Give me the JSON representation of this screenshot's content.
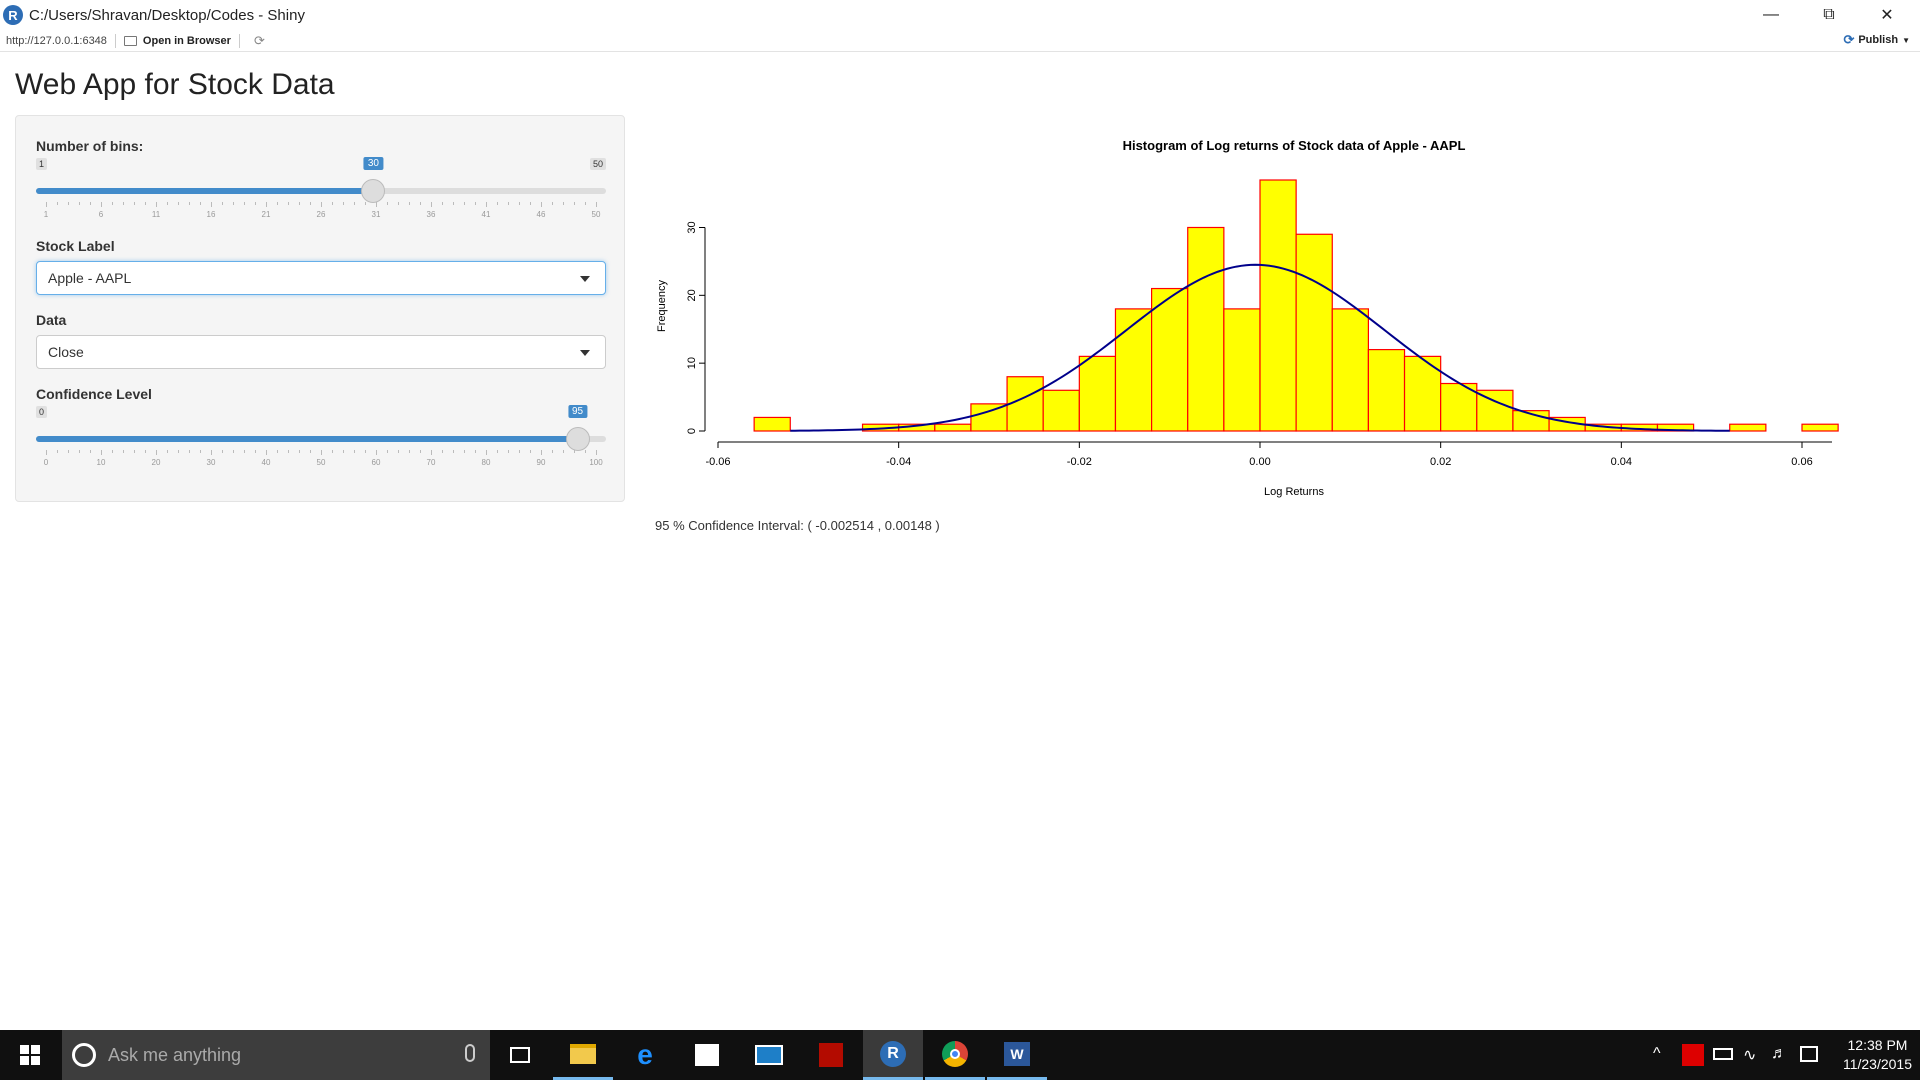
{
  "window": {
    "title": "C:/Users/Shravan/Desktop/Codes - Shiny",
    "url": "http://127.0.0.1:6348",
    "open_in_browser": "Open in Browser",
    "publish": "Publish"
  },
  "app": {
    "title": "Web App for Stock Data",
    "bins": {
      "label": "Number of bins:",
      "min": "1",
      "max": "50",
      "value": "30",
      "fraction": 0.592,
      "ticks": [
        "1",
        "6",
        "11",
        "16",
        "21",
        "26",
        "31",
        "36",
        "41",
        "46",
        "50"
      ]
    },
    "stock": {
      "label": "Stock Label",
      "value": "Apple - AAPL"
    },
    "data": {
      "label": "Data",
      "value": "Close"
    },
    "confidence": {
      "label": "Confidence Level",
      "min": "0",
      "max": "100",
      "value": "95",
      "fraction": 0.95,
      "ticks": [
        "0",
        "10",
        "20",
        "30",
        "40",
        "50",
        "60",
        "70",
        "80",
        "90",
        "100"
      ]
    },
    "ci_text": "95 % Confidence Interval: ( -0.002514 , 0.00148 )"
  },
  "chart_data": {
    "type": "bar",
    "title": "Histogram of Log returns of Stock data of Apple - AAPL",
    "xlabel": "Log Returns",
    "ylabel": "Frequency",
    "xlim": [
      -0.06,
      0.06
    ],
    "ylim": [
      0,
      37
    ],
    "x_ticks": [
      "-0.06",
      "-0.04",
      "-0.02",
      "0.00",
      "0.02",
      "0.04",
      "0.06"
    ],
    "y_ticks": [
      "0",
      "10",
      "20",
      "30"
    ],
    "bin_edges": [
      -0.056,
      -0.052,
      -0.048,
      -0.044,
      -0.04,
      -0.036,
      -0.032,
      -0.028,
      -0.024,
      -0.02,
      -0.016,
      -0.012,
      -0.008,
      -0.004,
      0.0,
      0.004,
      0.008,
      0.012,
      0.016,
      0.02,
      0.024,
      0.028,
      0.032,
      0.036,
      0.04,
      0.044,
      0.048,
      0.052,
      0.056,
      0.06,
      0.064
    ],
    "values": [
      2,
      0,
      0,
      1,
      1,
      1,
      4,
      8,
      6,
      11,
      18,
      21,
      30,
      18,
      37,
      29,
      18,
      12,
      11,
      7,
      6,
      3,
      2,
      1,
      1,
      1,
      0,
      1,
      0,
      1
    ],
    "bar_fill": "#ffff00",
    "bar_stroke": "#ff0000",
    "curve_color": "#00008b",
    "normal_curve": {
      "mean": -0.0005,
      "peak": 24.5,
      "sd": 0.0143
    }
  },
  "taskbar": {
    "search_placeholder": "Ask me anything",
    "time": "12:38 PM",
    "date": "11/23/2015"
  }
}
